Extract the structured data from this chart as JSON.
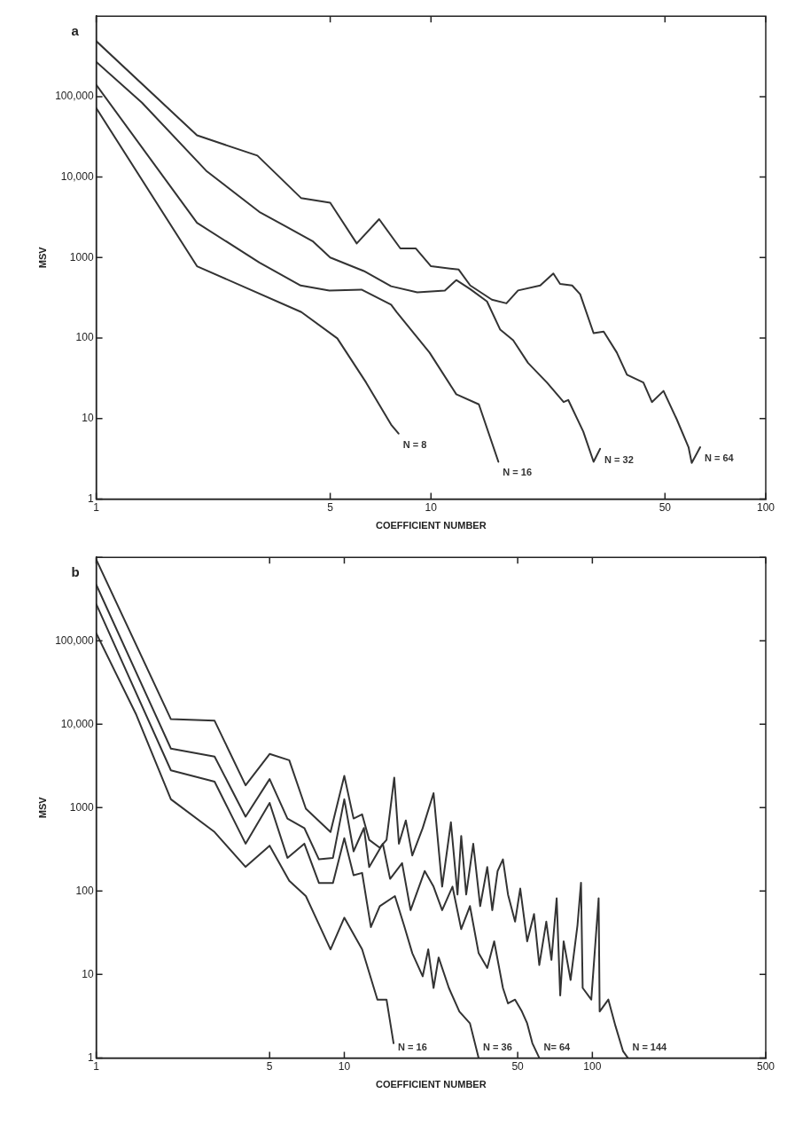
{
  "chart_data": [
    {
      "type": "line",
      "title": "a",
      "xlabel": "COEFFICIENT NUMBER",
      "ylabel": "MSV",
      "log": "xy",
      "marker": "none",
      "xlim": [
        1,
        100
      ],
      "xticks": [
        1,
        5,
        10,
        50,
        100
      ],
      "ylim": [
        1,
        1000000
      ],
      "yticks": [
        1,
        10,
        100,
        1000,
        {
          "value": 10000,
          "label": "10,000"
        },
        {
          "value": 100000,
          "label": "100,000"
        }
      ],
      "series": [
        {
          "name": "N = 8",
          "color": "#333333",
          "x": [
            1,
            2,
            4.1,
            5.25,
            6.4,
            7.6,
            8
          ],
          "values": [
            72000,
            780,
            210,
            99,
            28,
            8.4,
            6.5
          ]
        },
        {
          "name": "N = 16",
          "color": "#333333",
          "x": [
            1,
            2,
            3.07,
            4.08,
            4.97,
            6.2,
            7.6,
            7.9,
            9.9,
            11.9,
            13.9,
            15.9
          ],
          "values": [
            140000,
            2700,
            870,
            450,
            390,
            400,
            260,
            210,
            66,
            20,
            15,
            2.9
          ]
        },
        {
          "name": "N = 32",
          "color": "#333333",
          "x": [
            1,
            1.37,
            2.13,
            3.07,
            4.43,
            5,
            6.3,
            7.6,
            9.1,
            11,
            11.9,
            13.1,
            14.7,
            16.1,
            17.6,
            19.5,
            22.2,
            24.9,
            25.7,
            28.5,
            30.6,
            32
          ],
          "values": [
            270000,
            84000,
            12000,
            3700,
            1600,
            1000,
            680,
            440,
            370,
            390,
            525,
            405,
            285,
            127,
            94,
            49,
            28,
            16,
            17,
            6.9,
            2.9,
            4.2
          ]
        },
        {
          "name": "N = 64",
          "color": "#333333",
          "x": [
            1,
            2,
            3.03,
            4.09,
            5,
            6,
            7,
            8.1,
            9,
            10,
            12.1,
            13.1,
            15.2,
            16.8,
            18.2,
            21.2,
            23.2,
            24.3,
            26.4,
            27.9,
            30.6,
            32.8,
            35.9,
            38.5,
            43.1,
            45.7,
            49.5,
            54.2,
            58.8,
            60.1,
            63.7
          ],
          "values": [
            490000,
            33000,
            18500,
            5500,
            4800,
            1500,
            3000,
            1300,
            1300,
            780,
            710,
            450,
            300,
            270,
            390,
            450,
            635,
            470,
            450,
            350,
            115,
            120,
            66,
            35,
            28,
            16,
            22,
            9.8,
            4.4,
            2.8,
            4.4
          ]
        }
      ]
    },
    {
      "type": "line",
      "title": "b",
      "xlabel": "COEFFICIENT NUMBER",
      "ylabel": "MSV",
      "log": "xy",
      "marker": "none",
      "xlim": [
        1,
        500
      ],
      "xticks": [
        1,
        5,
        10,
        50,
        100,
        500
      ],
      "ylim": [
        1,
        1000000
      ],
      "yticks": [
        1,
        10,
        100,
        1000,
        {
          "value": 10000,
          "label": "10,000"
        },
        {
          "value": 100000,
          "label": "100,000"
        },
        {
          "value": 1000000,
          "label": null
        }
      ],
      "series": [
        {
          "name": "N = 16",
          "color": "#333333",
          "x": [
            1,
            1.45,
            2,
            3,
            4,
            5,
            6,
            7,
            8.8,
            10,
            11.8,
            13.6,
            14.8,
            15.8
          ],
          "values": [
            123000,
            13000,
            1260,
            510,
            195,
            350,
            133,
            87,
            20,
            48,
            20,
            5,
            5,
            1.5
          ]
        },
        {
          "name": "N = 36",
          "color": "#333333",
          "x": [
            1,
            2,
            3,
            4,
            5,
            5.9,
            6.9,
            7.9,
            9,
            10,
            10.9,
            11.8,
            12.8,
            13.9,
            16,
            17.4,
            18.8,
            20.7,
            21.8,
            22.9,
            24,
            26.4,
            29.1,
            32.1,
            34.8
          ],
          "values": [
            275000,
            2800,
            2050,
            370,
            1140,
            250,
            370,
            125,
            125,
            430,
            155,
            165,
            37,
            66,
            87,
            39,
            18,
            9.5,
            20,
            6.9,
            16,
            6.9,
            3.6,
            2.6,
            1
          ]
        },
        {
          "name": "N= 64",
          "color": "#333333",
          "x": [
            1,
            2,
            3,
            4,
            5,
            5.9,
            6.9,
            7.9,
            9,
            10,
            10.9,
            12,
            12.6,
            14.3,
            15.3,
            17.1,
            18.5,
            21.1,
            22.9,
            24.8,
            27.3,
            29.6,
            32.1,
            34.8,
            37.7,
            40.2,
            43.6,
            45.7,
            48.8,
            52,
            54.6,
            57.3,
            61.1
          ],
          "values": [
            470000,
            5100,
            4100,
            780,
            2200,
            740,
            570,
            240,
            250,
            1260,
            300,
            570,
            194,
            369,
            140,
            216,
            59,
            174,
            113,
            59,
            113,
            35,
            66,
            18,
            12,
            25,
            6.9,
            4.5,
            5,
            3.6,
            2.6,
            1.5,
            1
          ]
        },
        {
          "name": "N = 144",
          "color": "#333333",
          "x": [
            1,
            2,
            3,
            4,
            5,
            6,
            7,
            8.8,
            10,
            10.9,
            11.8,
            12.6,
            13.9,
            14.8,
            15.9,
            16.6,
            17.7,
            18.8,
            20.7,
            22.9,
            24.8,
            26.9,
            28.6,
            29.6,
            31,
            33.1,
            35.3,
            37.7,
            39.5,
            41.5,
            43.6,
            45.7,
            48.8,
            51.2,
            54.6,
            58.2,
            61.1,
            65.2,
            68.4,
            71.8,
            74.2,
            76.6,
            81.7,
            87.1,
            90,
            91.4,
            99,
            106,
            107,
            116,
            124,
            133,
            139
          ],
          "values": [
            940000,
            11500,
            11000,
            1850,
            4400,
            3700,
            970,
            510,
            2400,
            740,
            830,
            411,
            331,
            411,
            2290,
            369,
            703,
            267,
            568,
            1490,
            113,
            667,
            91,
            458,
            91,
            369,
            66,
            194,
            59,
            174,
            240,
            91,
            43,
            107,
            25,
            53,
            13,
            43,
            15,
            82,
            5.6,
            25,
            8.6,
            39,
            126,
            6.9,
            5,
            82,
            3.6,
            5,
            2.4,
            1.2,
            1
          ]
        }
      ]
    }
  ]
}
